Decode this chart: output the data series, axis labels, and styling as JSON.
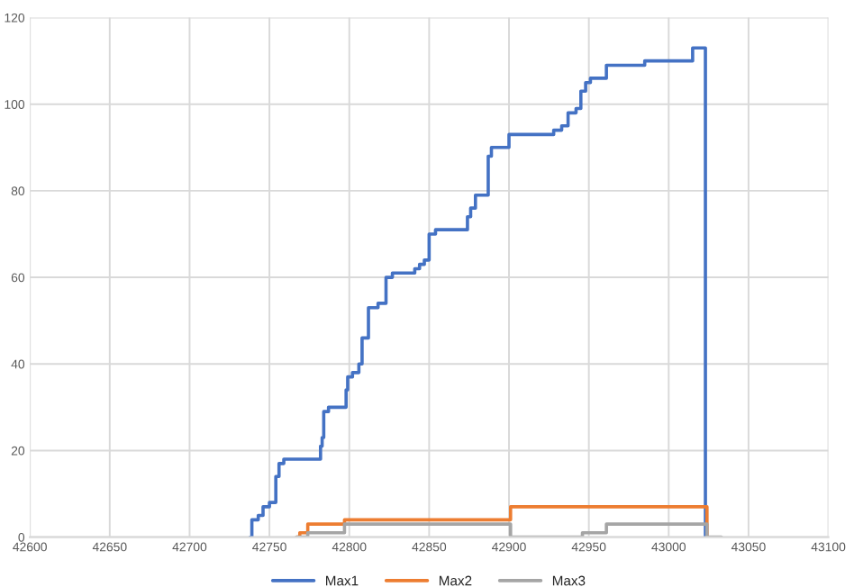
{
  "chart_data": {
    "type": "step",
    "xlim": [
      42600,
      43100
    ],
    "ylim": [
      0,
      120
    ],
    "xticks": [
      42600,
      42650,
      42700,
      42750,
      42800,
      42850,
      42900,
      42950,
      43000,
      43050,
      43100
    ],
    "yticks": [
      0,
      20,
      40,
      60,
      80,
      100,
      120
    ],
    "grid": true,
    "legend": "bottom",
    "marker": "none",
    "line_style": "solid",
    "series": [
      {
        "name": "Max1",
        "color": "#4472c4",
        "x": [
          42738,
          42739,
          42743,
          42746,
          42750,
          42754,
          42756,
          42759,
          42782,
          42783,
          42784,
          42787,
          42798,
          42799,
          42802,
          42806,
          42808,
          42812,
          42818,
          42823,
          42827,
          42841,
          42844,
          42847,
          42850,
          42854,
          42874,
          42876,
          42879,
          42887,
          42889,
          42900,
          42928,
          42933,
          42937,
          42942,
          42945,
          42948,
          42951,
          42961,
          42985,
          43015,
          43023
        ],
        "values": [
          0,
          4,
          5,
          7,
          8,
          14,
          17,
          18,
          21,
          23,
          29,
          30,
          34,
          37,
          38,
          40,
          46,
          53,
          54,
          60,
          61,
          62,
          63,
          64,
          70,
          71,
          74,
          76,
          79,
          88,
          90,
          93,
          94,
          95,
          98,
          99,
          103,
          105,
          106,
          109,
          110,
          113,
          0
        ]
      },
      {
        "name": "Max2",
        "color": "#ed7d31",
        "x": [
          42767,
          42769,
          42774,
          42797,
          42901,
          43024
        ],
        "values": [
          0,
          1,
          3,
          4,
          7,
          0
        ]
      },
      {
        "name": "Max3",
        "color": "#a5a5a5",
        "x": [
          42767,
          42774,
          42797,
          42901,
          42946,
          42961,
          43024,
          43033
        ],
        "values": [
          0,
          1,
          3,
          0,
          1,
          3,
          0,
          0
        ]
      }
    ]
  }
}
